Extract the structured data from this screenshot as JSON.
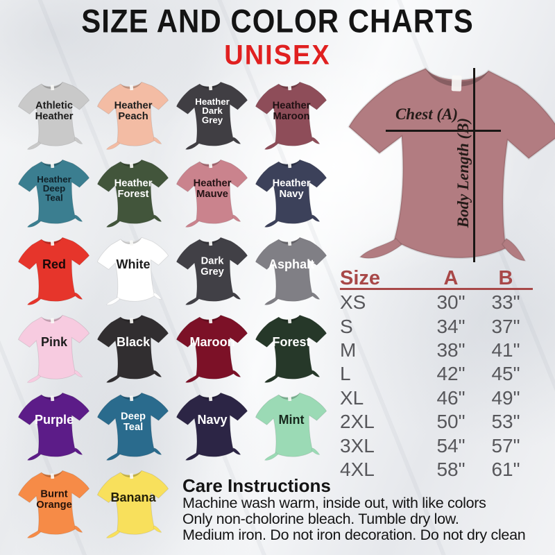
{
  "header": {
    "title": "SIZE AND COLOR CHARTS",
    "subtitle": "UNISEX",
    "title_color": "#141414",
    "subtitle_color": "#e02020"
  },
  "color_chart": {
    "shirts": [
      {
        "name": "Athletic Heather",
        "lines": [
          "Athletic",
          "Heather"
        ],
        "color": "#c9c9c9",
        "text_color": "#1c1c1c"
      },
      {
        "name": "Heather Peach",
        "lines": [
          "Heather",
          "Peach"
        ],
        "color": "#f3bca4",
        "text_color": "#1c1c1c"
      },
      {
        "name": "Heather Dark Grey",
        "lines": [
          "Heather",
          "Dark",
          "Grey"
        ],
        "color": "#403e43",
        "text_color": "#ffffff"
      },
      {
        "name": "Heather Maroon",
        "lines": [
          "Heather",
          "Maroon"
        ],
        "color": "#8e4d59",
        "text_color": "#201013"
      },
      {
        "name": "Heather Deep Teal",
        "lines": [
          "Heather",
          "Deep",
          "Teal"
        ],
        "color": "#3b7e90",
        "text_color": "#10222a"
      },
      {
        "name": "Heather Forest",
        "lines": [
          "Heather",
          "Forest"
        ],
        "color": "#42553b",
        "text_color": "#ffffff"
      },
      {
        "name": "Heather Mauve",
        "lines": [
          "Heather",
          "Mauve"
        ],
        "color": "#ca838d",
        "text_color": "#231214"
      },
      {
        "name": "Heather Navy",
        "lines": [
          "Heather",
          "Navy"
        ],
        "color": "#3c415a",
        "text_color": "#ffffff"
      },
      {
        "name": "Red",
        "lines": [
          "Red"
        ],
        "color": "#e6352b",
        "text_color": "#190808"
      },
      {
        "name": "White",
        "lines": [
          "White"
        ],
        "color": "#ffffff",
        "text_color": "#1c1c1c"
      },
      {
        "name": "Dark Grey",
        "lines": [
          "Dark",
          "Grey"
        ],
        "color": "#414046",
        "text_color": "#ffffff"
      },
      {
        "name": "Asphalt",
        "lines": [
          "Asphalt"
        ],
        "color": "#807f85",
        "text_color": "#ffffff"
      },
      {
        "name": "Pink",
        "lines": [
          "Pink"
        ],
        "color": "#f7cbe0",
        "text_color": "#1c1c1c"
      },
      {
        "name": "Black",
        "lines": [
          "Black"
        ],
        "color": "#312e30",
        "text_color": "#ffffff"
      },
      {
        "name": "Maroon",
        "lines": [
          "Maroon"
        ],
        "color": "#7c1127",
        "text_color": "#ffffff"
      },
      {
        "name": "Forest",
        "lines": [
          "Forest"
        ],
        "color": "#263829",
        "text_color": "#ffffff"
      },
      {
        "name": "Purple",
        "lines": [
          "Purple"
        ],
        "color": "#5c1c88",
        "text_color": "#ffffff"
      },
      {
        "name": "Deep Teal",
        "lines": [
          "Deep",
          "Teal"
        ],
        "color": "#2a6b8d",
        "text_color": "#ffffff"
      },
      {
        "name": "Navy",
        "lines": [
          "Navy"
        ],
        "color": "#2c2545",
        "text_color": "#ffffff"
      },
      {
        "name": "Mint",
        "lines": [
          "Mint"
        ],
        "color": "#9bdab5",
        "text_color": "#17281d"
      },
      {
        "name": "Burnt Orange",
        "lines": [
          "Burnt",
          "Orange"
        ],
        "color": "#f68b47",
        "text_color": "#24120a"
      },
      {
        "name": "Banana",
        "lines": [
          "Banana"
        ],
        "color": "#f8e05c",
        "text_color": "#242008"
      }
    ]
  },
  "measure_shirt": {
    "color": "#b27c81",
    "chest_label": "Chest (A)",
    "length_label": "Body Length (B)",
    "line_color": "#1a1715"
  },
  "size_table": {
    "headers": [
      "Size",
      "A",
      "B"
    ],
    "header_color": "#a84848",
    "rows": [
      {
        "size": "XS",
        "a": "30\"",
        "b": "33\""
      },
      {
        "size": "S",
        "a": "34\"",
        "b": "37\""
      },
      {
        "size": "M",
        "a": "38\"",
        "b": "41\""
      },
      {
        "size": "L",
        "a": "42\"",
        "b": "45\""
      },
      {
        "size": "XL",
        "a": "46\"",
        "b": "49\""
      },
      {
        "size": "2XL",
        "a": "50\"",
        "b": "53\""
      },
      {
        "size": "3XL",
        "a": "54\"",
        "b": "57\""
      },
      {
        "size": "4XL",
        "a": "58\"",
        "b": "61\""
      }
    ]
  },
  "care": {
    "title": "Care Instructions",
    "lines": [
      "Machine wash warm, inside out, with like colors",
      "Only non-cholorine bleach. Tumble dry low.",
      "Medium iron. Do not iron decoration. Do not dry clean"
    ]
  }
}
